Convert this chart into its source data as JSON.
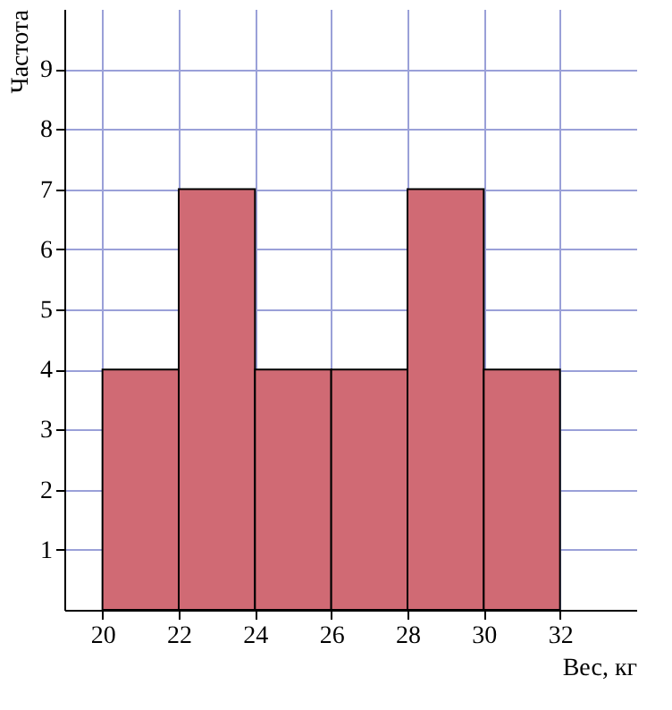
{
  "chart_data": {
    "type": "histogram",
    "xlabel": "Вес, кг",
    "ylabel": "Частота",
    "bins": [
      20,
      22,
      24,
      26,
      28,
      30,
      32
    ],
    "values": [
      4,
      7,
      4,
      4,
      7,
      4
    ],
    "color": "#d06a74",
    "xlim": [
      19,
      34
    ],
    "ylim": [
      0,
      10
    ],
    "xticks": [
      20,
      22,
      24,
      26,
      28,
      30,
      32
    ],
    "yticks": [
      1,
      2,
      3,
      4,
      5,
      6,
      7,
      8,
      9
    ],
    "grid": true
  }
}
